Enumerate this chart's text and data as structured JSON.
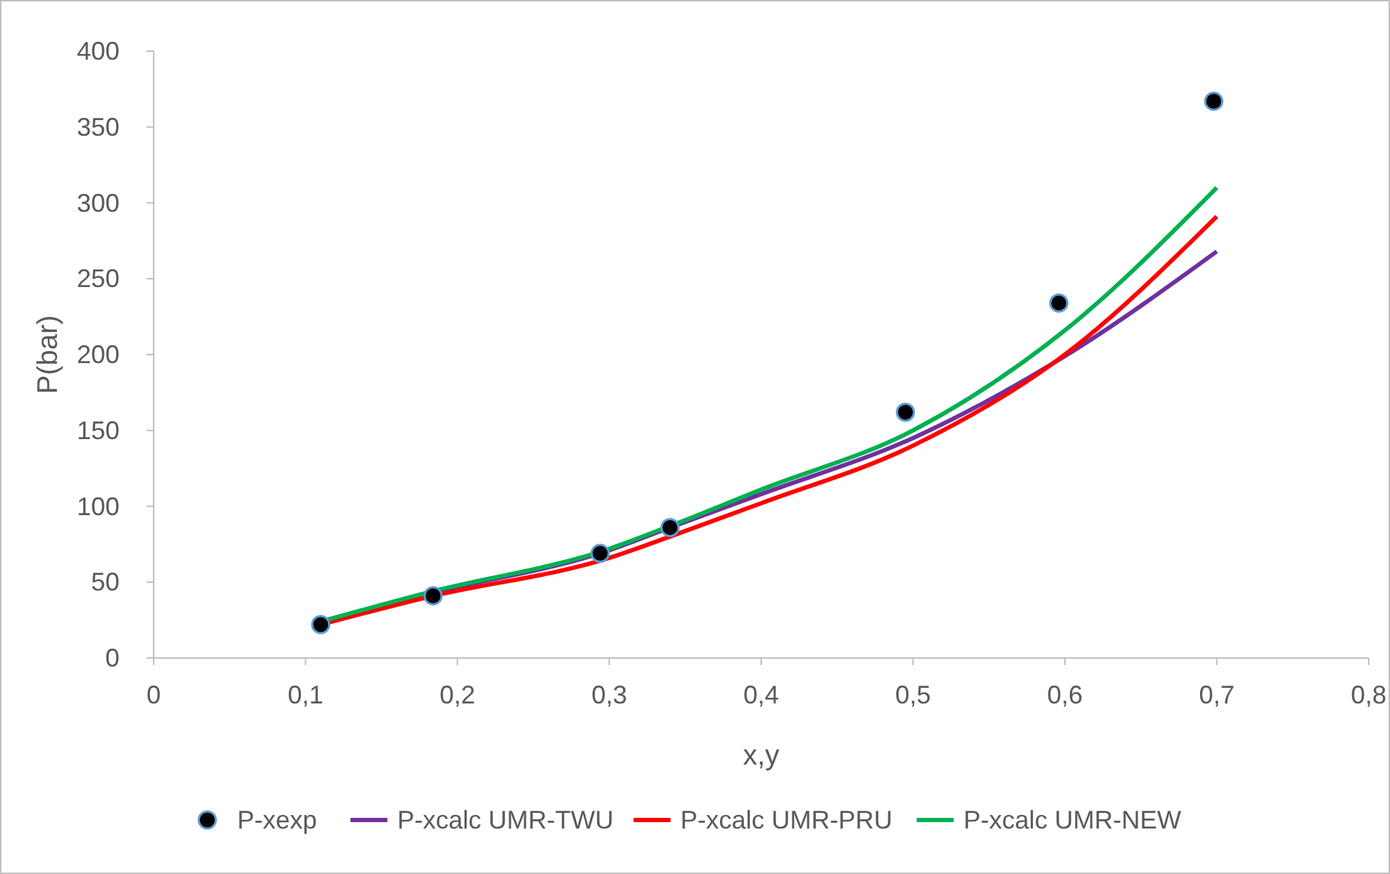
{
  "chart_data": {
    "type": "scatter",
    "xlabel": "x,y",
    "ylabel": "P(bar)",
    "xlim": [
      0,
      0.8
    ],
    "xticks": [
      {
        "value": 0,
        "label": "0"
      },
      {
        "value": 0.1,
        "label": "0,1"
      },
      {
        "value": 0.2,
        "label": "0,2"
      },
      {
        "value": 0.3,
        "label": "0,3"
      },
      {
        "value": 0.4,
        "label": "0,4"
      },
      {
        "value": 0.5,
        "label": "0,5"
      },
      {
        "value": 0.6,
        "label": "0,6"
      },
      {
        "value": 0.7,
        "label": "0,7"
      },
      {
        "value": 0.8,
        "label": "0,8"
      }
    ],
    "ylim": [
      0,
      400
    ],
    "yticks": [
      0,
      50,
      100,
      150,
      200,
      250,
      300,
      350,
      400
    ],
    "grid": false,
    "legend": "bottom",
    "series": [
      {
        "name": "P-xexp",
        "type": "scatter",
        "marker": "circle",
        "color": "#000000",
        "x": [
          0.11,
          0.184,
          0.294,
          0.34,
          0.495,
          0.596,
          0.698
        ],
        "values": [
          22,
          41,
          69,
          86,
          162,
          234,
          367
        ]
      },
      {
        "name": "P-xcalc UMR-TWU",
        "type": "line",
        "color": "#7030a0",
        "x": [
          0.11,
          0.18,
          0.3,
          0.34,
          0.4,
          0.5,
          0.6,
          0.7
        ],
        "values": [
          23,
          42,
          71,
          86,
          108,
          145,
          199,
          268
        ]
      },
      {
        "name": "P-xcalc UMR-PRU",
        "type": "line",
        "color": "#ff0000",
        "x": [
          0.11,
          0.18,
          0.3,
          0.34,
          0.4,
          0.5,
          0.6,
          0.7
        ],
        "values": [
          22,
          40,
          66,
          80,
          102,
          140,
          200,
          291
        ]
      },
      {
        "name": "P-xcalc UMR-NEW",
        "type": "line",
        "color": "#00b050",
        "x": [
          0.11,
          0.18,
          0.3,
          0.34,
          0.4,
          0.5,
          0.6,
          0.7
        ],
        "values": [
          24,
          43,
          72,
          87,
          111,
          150,
          216,
          310
        ]
      }
    ]
  }
}
